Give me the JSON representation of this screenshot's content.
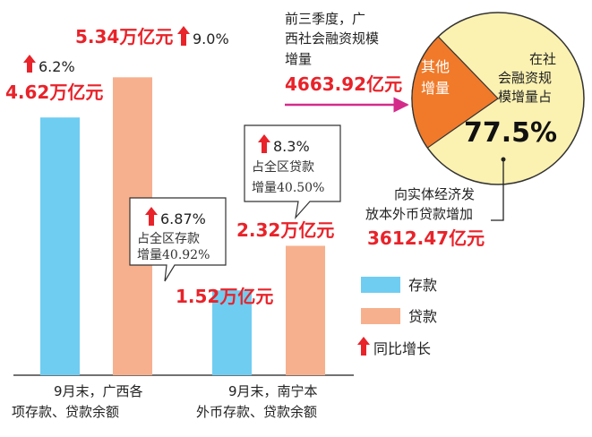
{
  "colors": {
    "deposit": "#6fcdf2",
    "loan": "#f7b08e",
    "accent": "#e8232a",
    "pie_main": "#fbf1b1",
    "pie_other": "#f07a2a"
  },
  "chart_data": [
    {
      "type": "bar",
      "categories": [
        "9月末，广西各\n项存款、贷款余额",
        "9月末，南宁本\n外币存款、贷款余额"
      ],
      "series": [
        {
          "name": "存款",
          "values": [
            4.62,
            1.52
          ]
        },
        {
          "name": "贷款",
          "values": [
            5.34,
            2.32
          ]
        }
      ],
      "unit": "万亿元",
      "legend": [
        {
          "label": "存款",
          "icon": "blue-square"
        },
        {
          "label": "贷款",
          "icon": "salmon-square"
        },
        {
          "label": "同比增长",
          "icon": "up-arrow-icon"
        }
      ]
    },
    {
      "type": "pie",
      "slices": [
        {
          "label": "在社会融资规模增量占",
          "value": 77.5
        },
        {
          "label": "其他增量",
          "value": 22.5
        }
      ]
    }
  ],
  "bars": [
    {
      "value_text": "4.62万亿元",
      "growth": "6.2%"
    },
    {
      "value_text": "5.34万亿元",
      "growth": "9.0%"
    },
    {
      "value_text": "1.52万亿元"
    },
    {
      "value_text": "2.32万亿元"
    }
  ],
  "callouts": {
    "nanning_deposit": {
      "growth": "6.87%",
      "line1": "占全区存款",
      "line2": "增量40.92%"
    },
    "nanning_loan": {
      "growth": "8.3%",
      "line1": "占全区贷款",
      "line2": "增量40.50%"
    }
  },
  "categories_labels": [
    {
      "line1": "9月末，广西各",
      "line2": "项存款、贷款余额"
    },
    {
      "line1": "9月末，南宁本",
      "line2": "外币存款、贷款余额"
    }
  ],
  "legend": {
    "deposit": "存款",
    "loan": "贷款",
    "growth": "同比增长"
  },
  "pie": {
    "top_line1": "前三季度，广",
    "top_line2": "西社会融资规模",
    "top_line3": "增量",
    "top_value": "4663.92亿元",
    "other_line1": "其他",
    "other_line2": "增量",
    "main_line1": "在社",
    "main_line2": "会融资规",
    "main_line3": "模增量占",
    "main_percent": "77.5%",
    "bottom_line1": "向实体经济发",
    "bottom_line2": "放本外币贷款增加",
    "bottom_value": "3612.47亿元"
  }
}
